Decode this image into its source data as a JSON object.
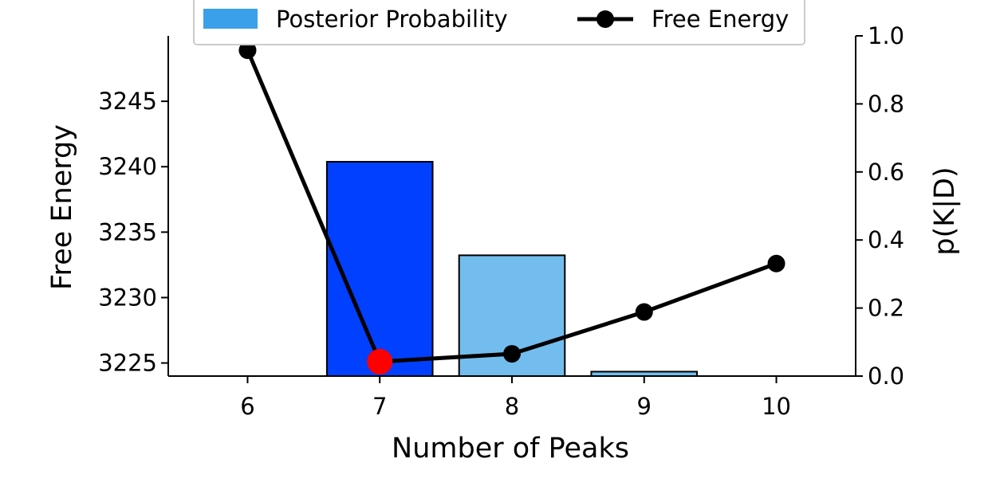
{
  "chart_data": {
    "type": "bar",
    "categories": [
      "6",
      "7",
      "8",
      "9",
      "10"
    ],
    "x": [
      6,
      7,
      8,
      9,
      10
    ],
    "xlabel": "Number of Peaks",
    "ylabel_left": "Free Energy",
    "ylabel_right": "p(K|D)",
    "ylim_left": [
      3224,
      3250
    ],
    "ylim_right": [
      0,
      1
    ],
    "xlim": [
      5.4,
      10.6
    ],
    "xticks": [
      "6",
      "7",
      "8",
      "9",
      "10"
    ],
    "yticks_left": [
      "3225",
      "3230",
      "3235",
      "3240",
      "3245"
    ],
    "yticks_right": [
      "0.0",
      "0.2",
      "0.4",
      "0.6",
      "0.8",
      "1.0"
    ],
    "grid": false,
    "legend_position": "top",
    "series": [
      {
        "name": "Posterior Probability",
        "type": "bar",
        "axis": "right",
        "values": [
          0,
          0.63,
          0.355,
          0.013,
          0
        ],
        "bar_colors": [
          "#2a8fe8",
          "#0140fe",
          "#73bdee",
          "#73bdee",
          "#73bdee"
        ],
        "legend_color": "#3ba0ea"
      },
      {
        "name": "Free Energy",
        "type": "line",
        "axis": "left",
        "values": [
          3248.9,
          3225.1,
          3225.7,
          3228.9,
          3232.6
        ],
        "color": "#000000",
        "highlight_index": 1,
        "highlight_color": "#ff0000"
      }
    ]
  }
}
